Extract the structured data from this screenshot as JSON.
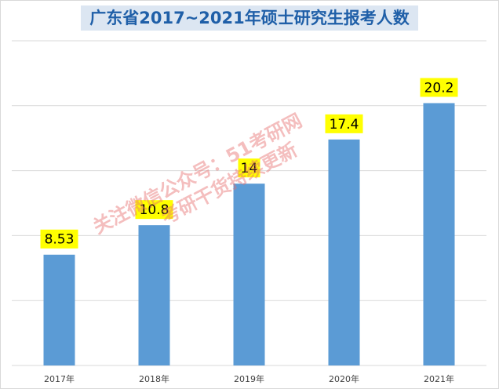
{
  "title": "广东省2017~2021年硕士研究生报考人数",
  "watermark": {
    "line1": "关注微信公众号：51考研网",
    "line2": "考研干货持续更新"
  },
  "colors": {
    "bar": "#5b9bd5",
    "label_bg": "#ffff00",
    "title": "#1f5fa8",
    "title_bg": "#dce6f2",
    "grid": "#d9d9d9"
  },
  "chart_data": {
    "type": "bar",
    "categories": [
      "2017年",
      "2018年",
      "2019年",
      "2020年",
      "2021年"
    ],
    "values": [
      8.53,
      10.8,
      14,
      17.4,
      20.2
    ],
    "value_labels": [
      "8.53",
      "10.8",
      "14",
      "17.4",
      "20.2"
    ],
    "title": "广东省2017~2021年硕士研究生报考人数",
    "xlabel": "",
    "ylabel": "",
    "ylim": [
      0,
      25
    ],
    "grid": true,
    "y_tick_labels_shown": false,
    "legend": "none"
  }
}
